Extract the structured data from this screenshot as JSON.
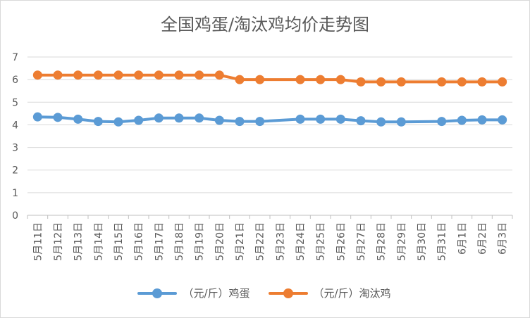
{
  "chart_data": {
    "type": "line",
    "title": "全国鸡蛋/淘汰鸡均价走势图",
    "categories": [
      "5月11日",
      "5月12日",
      "5月13日",
      "5月14日",
      "5月15日",
      "5月16日",
      "5月17日",
      "5月18日",
      "5月19日",
      "5月20日",
      "5月21日",
      "5月22日",
      "5月23日",
      "5月24日",
      "5月25日",
      "5月26日",
      "5月27日",
      "5月28日",
      "5月29日",
      "5月30日",
      "5月31日",
      "6月1日",
      "6月2日",
      "6月3日"
    ],
    "ylim": [
      0,
      7
    ],
    "yticks": [
      0,
      1,
      2,
      3,
      4,
      5,
      6,
      7
    ],
    "grid": true,
    "legend_position": "bottom",
    "series": [
      {
        "name": "（元/斤）鸡蛋",
        "color": "#5b9bd5",
        "values": [
          4.35,
          4.33,
          4.25,
          4.15,
          4.13,
          4.2,
          4.3,
          4.3,
          4.3,
          4.2,
          4.15,
          4.15,
          null,
          4.25,
          4.25,
          4.25,
          4.18,
          4.13,
          4.13,
          null,
          4.15,
          4.2,
          4.22,
          4.22
        ]
      },
      {
        "name": "（元/斤）淘汰鸡",
        "color": "#ed7d31",
        "values": [
          6.2,
          6.2,
          6.2,
          6.2,
          6.2,
          6.2,
          6.2,
          6.2,
          6.2,
          6.2,
          6.0,
          6.0,
          null,
          6.0,
          6.0,
          6.0,
          5.9,
          5.9,
          5.9,
          null,
          5.9,
          5.9,
          5.9,
          5.9
        ]
      }
    ]
  }
}
